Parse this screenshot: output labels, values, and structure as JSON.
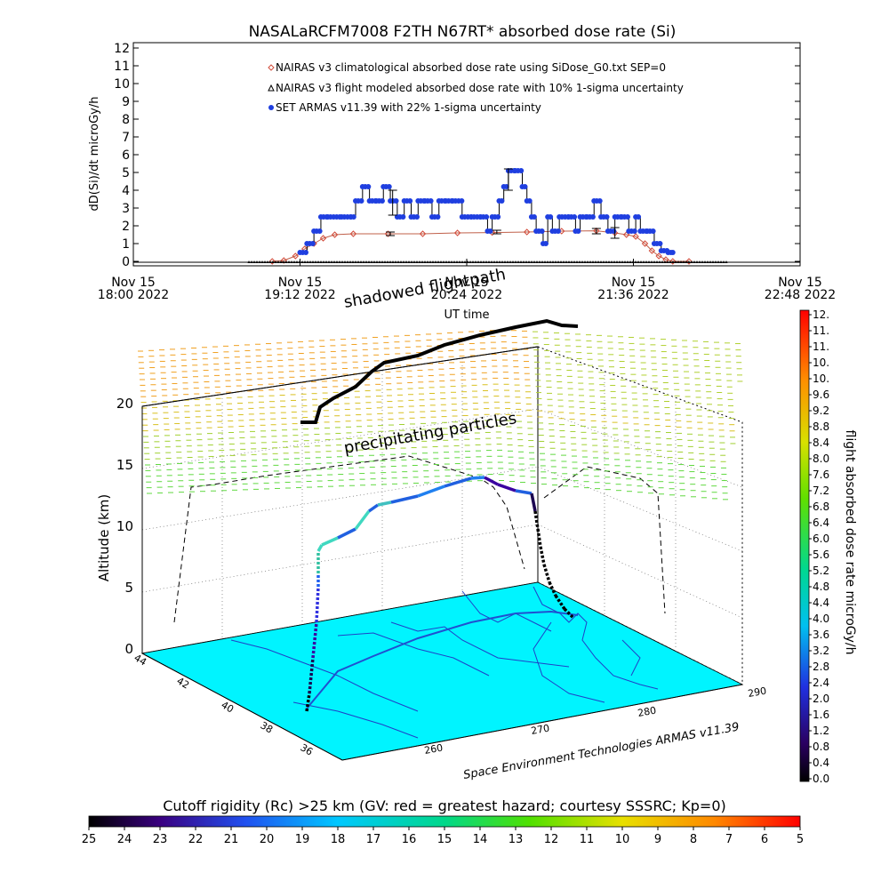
{
  "chart_data": [
    {
      "type": "line",
      "title": "NASALaRCFM7008  F2TH N67RT* absorbed dose rate (Si)",
      "xlabel": "UT time",
      "ylabel": "dD(Si)/dt microGy/h",
      "ylim": [
        0,
        12
      ],
      "yticks": [
        "0",
        "1",
        "2",
        "3",
        "4",
        "5",
        "6",
        "7",
        "8",
        "9",
        "10",
        "11",
        "12"
      ],
      "xlim": [
        "2022-11-15T18:00",
        "2022-11-15T22:48"
      ],
      "xticks": [
        {
          "time": "2022-11-15T18:00",
          "line1": "Nov 15",
          "line2": "18:00 2022"
        },
        {
          "time": "2022-11-15T19:12",
          "line1": "Nov 15",
          "line2": "19:12 2022"
        },
        {
          "time": "2022-11-15T20:24",
          "line1": "Nov 15",
          "line2": "20:24 2022"
        },
        {
          "time": "2022-11-15T21:36",
          "line1": "Nov 15",
          "line2": "21:36 2022"
        },
        {
          "time": "2022-11-15T22:48",
          "line1": "Nov 15",
          "line2": "22:48 2022"
        }
      ],
      "legend_position": "top-center",
      "series": [
        {
          "name": "NAIRAS v3 climatological absorbed dose rate using SiDose_G0.txt SEP=0",
          "color": "#d24b3a",
          "marker": "diamond",
          "points": [
            [
              "2022-11-15T19:00",
              0
            ],
            [
              "2022-11-15T19:05",
              0.05
            ],
            [
              "2022-11-15T19:10",
              0.3
            ],
            [
              "2022-11-15T19:14",
              0.7
            ],
            [
              "2022-11-15T19:18",
              1.0
            ],
            [
              "2022-11-15T19:22",
              1.3
            ],
            [
              "2022-11-15T19:27",
              1.5
            ],
            [
              "2022-11-15T19:35",
              1.55
            ],
            [
              "2022-11-15T19:50",
              1.55
            ],
            [
              "2022-11-15T20:05",
              1.55
            ],
            [
              "2022-11-15T20:20",
              1.6
            ],
            [
              "2022-11-15T20:35",
              1.62
            ],
            [
              "2022-11-15T20:50",
              1.65
            ],
            [
              "2022-11-15T21:05",
              1.7
            ],
            [
              "2022-11-15T21:20",
              1.72
            ],
            [
              "2022-11-15T21:28",
              1.6
            ],
            [
              "2022-11-15T21:33",
              1.5
            ],
            [
              "2022-11-15T21:37",
              1.4
            ],
            [
              "2022-11-15T21:41",
              1.0
            ],
            [
              "2022-11-15T21:44",
              0.6
            ],
            [
              "2022-11-15T21:47",
              0.3
            ],
            [
              "2022-11-15T21:50",
              0.1
            ],
            [
              "2022-11-15T21:53",
              0
            ],
            [
              "2022-11-15T22:00",
              0
            ]
          ],
          "error_bars": [
            [
              "2022-11-15T19:51",
              1.55,
              0.1
            ],
            [
              "2022-11-15T20:37",
              1.65,
              0.1
            ],
            [
              "2022-11-15T21:20",
              1.7,
              0.15
            ]
          ]
        },
        {
          "name": "NAIRAS v3 flight modeled absorbed dose rate with 10% 1-sigma uncertainty",
          "color": "#000000",
          "marker": "triangle",
          "points": [
            [
              "2022-11-15T18:00",
              0
            ],
            [
              "2022-11-15T22:48",
              0
            ]
          ]
        },
        {
          "name": "SET ARMAS v11.39 with 22% 1-sigma uncertainty",
          "color": "#1f3fe0",
          "marker": "circle",
          "points": [
            [
              "2022-11-15T19:12",
              0.5
            ],
            [
              "2022-11-15T19:15",
              1.0
            ],
            [
              "2022-11-15T19:18",
              1.7
            ],
            [
              "2022-11-15T19:21",
              2.5
            ],
            [
              "2022-11-15T19:24",
              2.5
            ],
            [
              "2022-11-15T19:30",
              2.5
            ],
            [
              "2022-11-15T19:34",
              2.5
            ],
            [
              "2022-11-15T19:36",
              3.4
            ],
            [
              "2022-11-15T19:39",
              4.2
            ],
            [
              "2022-11-15T19:42",
              3.4
            ],
            [
              "2022-11-15T19:45",
              3.4
            ],
            [
              "2022-11-15T19:48",
              4.2
            ],
            [
              "2022-11-15T19:51",
              3.4
            ],
            [
              "2022-11-15T19:54",
              2.5
            ],
            [
              "2022-11-15T19:57",
              3.4
            ],
            [
              "2022-11-15T20:00",
              2.5
            ],
            [
              "2022-11-15T20:03",
              3.4
            ],
            [
              "2022-11-15T20:06",
              3.4
            ],
            [
              "2022-11-15T20:09",
              2.5
            ],
            [
              "2022-11-15T20:12",
              3.4
            ],
            [
              "2022-11-15T20:15",
              3.4
            ],
            [
              "2022-11-15T20:18",
              3.4
            ],
            [
              "2022-11-15T20:22",
              2.5
            ],
            [
              "2022-11-15T20:26",
              2.5
            ],
            [
              "2022-11-15T20:30",
              2.5
            ],
            [
              "2022-11-15T20:33",
              1.7
            ],
            [
              "2022-11-15T20:35",
              2.5
            ],
            [
              "2022-11-15T20:38",
              3.4
            ],
            [
              "2022-11-15T20:40",
              4.2
            ],
            [
              "2022-11-15T20:42",
              5.1
            ],
            [
              "2022-11-15T20:45",
              5.1
            ],
            [
              "2022-11-15T20:48",
              4.2
            ],
            [
              "2022-11-15T20:50",
              3.4
            ],
            [
              "2022-11-15T20:52",
              2.5
            ],
            [
              "2022-11-15T20:54",
              1.7
            ],
            [
              "2022-11-15T20:57",
              1.0
            ],
            [
              "2022-11-15T20:59",
              2.5
            ],
            [
              "2022-11-15T21:01",
              1.7
            ],
            [
              "2022-11-15T21:04",
              2.5
            ],
            [
              "2022-11-15T21:08",
              2.5
            ],
            [
              "2022-11-15T21:11",
              1.7
            ],
            [
              "2022-11-15T21:13",
              2.5
            ],
            [
              "2022-11-15T21:16",
              2.5
            ],
            [
              "2022-11-15T21:19",
              3.4
            ],
            [
              "2022-11-15T21:22",
              2.5
            ],
            [
              "2022-11-15T21:25",
              1.7
            ],
            [
              "2022-11-15T21:28",
              2.5
            ],
            [
              "2022-11-15T21:31",
              2.5
            ],
            [
              "2022-11-15T21:34",
              1.7
            ],
            [
              "2022-11-15T21:37",
              2.5
            ],
            [
              "2022-11-15T21:39",
              1.7
            ],
            [
              "2022-11-15T21:42",
              1.7
            ],
            [
              "2022-11-15T21:45",
              1.0
            ],
            [
              "2022-11-15T21:48",
              0.6
            ],
            [
              "2022-11-15T21:51",
              0.5
            ],
            [
              "2022-11-15T21:53",
              0.5
            ]
          ],
          "error_bars": [
            [
              "2022-11-15T19:52",
              3.3,
              0.7
            ],
            [
              "2022-11-15T20:42",
              4.6,
              0.6
            ],
            [
              "2022-11-15T21:28",
              1.6,
              0.3
            ]
          ]
        }
      ]
    },
    {
      "type": "scatter",
      "chart_kind": "3d-flight-path-over-cutoff-rigidity-map",
      "zlabel": "Altitude (km)",
      "zticks": [
        "0",
        "5",
        "10",
        "15",
        "20"
      ],
      "zlim": [
        0,
        20
      ],
      "y_axis_ticks": [
        "44",
        "42",
        "40",
        "38",
        "36"
      ],
      "x_axis_ticks": [
        "260",
        "270",
        "280",
        "290"
      ],
      "annotations": [
        "shadowed flightpath",
        "precipitating particles"
      ],
      "credit": "Space Environment Technologies ARMAS v11.39",
      "colorbar": {
        "label": "flight absorbed dose rate microGy/h",
        "ticks": [
          "0.0",
          "0.4",
          "0.8",
          "1.2",
          "1.6",
          "2.0",
          "2.4",
          "2.8",
          "3.2",
          "3.6",
          "4.0",
          "4.4",
          "4.8",
          "5.2",
          "5.6",
          "6.0",
          "6.4",
          "6.8",
          "7.2",
          "7.6",
          "8.0",
          "8.4",
          "8.8",
          "9.2",
          "9.6",
          "10.",
          "10.",
          "11.",
          "11.",
          "12."
        ]
      },
      "flight_path_profile_km": [
        0.5,
        2.0,
        5.0,
        8.2,
        8.4,
        9.6,
        10.4,
        11.8,
        12.5,
        13.1,
        13.6,
        14.0,
        13.8,
        13.4,
        12.6,
        11.0,
        8.0,
        5.0,
        3.0,
        1.5
      ]
    },
    {
      "type": "heatmap",
      "title": "Cutoff rigidity (Rc) >25 km (GV: red = greatest hazard; courtesy SSSRC; Kp=0)",
      "ticks": [
        "25",
        "24",
        "23",
        "22",
        "21",
        "20",
        "19",
        "18",
        "17",
        "16",
        "15",
        "14",
        "13",
        "12",
        "11",
        "10",
        "9",
        "8",
        "7",
        "6",
        "5"
      ]
    }
  ]
}
